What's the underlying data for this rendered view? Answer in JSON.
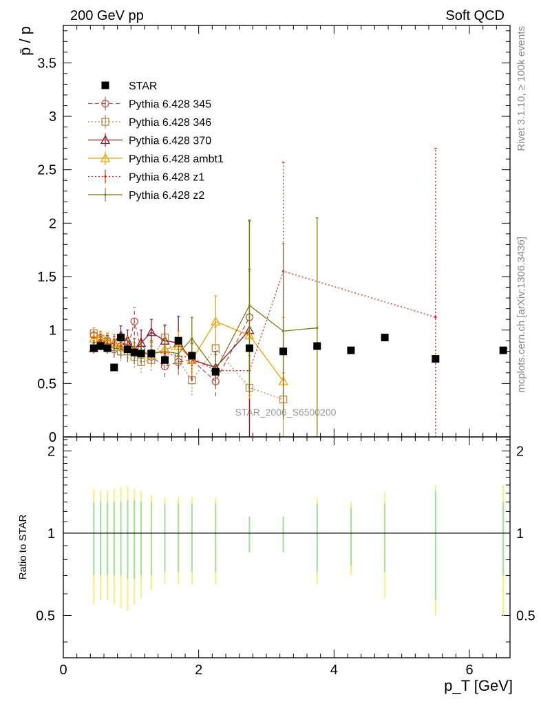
{
  "header": {
    "left": "200 GeV pp",
    "right": "Soft QCD"
  },
  "side_labels": {
    "rivet": "Rivet 3.1.10, ≥ 100k events",
    "mcplots": "mcplots.cern.ch [arXiv:1306.3436]"
  },
  "watermark": "STAR_2006_S6500200",
  "chart_data": [
    {
      "type": "scatter",
      "panel": "main",
      "ylabel": "p̄ / p",
      "xlim": [
        0,
        6.6
      ],
      "ylim": [
        0,
        3.85
      ],
      "yticks": [
        0,
        0.5,
        1,
        1.5,
        2,
        2.5,
        3,
        3.5
      ],
      "ytick_labels": [
        "0",
        "0.5",
        "1",
        "1.5",
        "2",
        "2.5",
        "3",
        "3.5"
      ],
      "legend_position": "top-left",
      "series": [
        {
          "name": "STAR",
          "color": "#000000",
          "style": "markers",
          "marker": "filled-square",
          "x": [
            0.45,
            0.55,
            0.65,
            0.75,
            0.85,
            0.95,
            1.05,
            1.15,
            1.3,
            1.5,
            1.7,
            1.9,
            2.25,
            2.75,
            3.25,
            3.75,
            4.25,
            4.75,
            5.5,
            6.5
          ],
          "y": [
            0.83,
            0.85,
            0.83,
            0.65,
            0.93,
            0.82,
            0.79,
            0.78,
            0.78,
            0.72,
            0.9,
            0.76,
            0.61,
            0.83,
            0.8,
            0.85,
            0.81,
            0.93,
            0.73,
            0.81
          ]
        },
        {
          "name": "Pythia 6.428 345",
          "color": "#c0504d",
          "style": "dashed",
          "marker": "open-circle",
          "x": [
            0.45,
            0.55,
            0.65,
            0.75,
            0.85,
            0.95,
            1.05,
            1.15,
            1.3,
            1.5,
            1.7,
            1.9,
            2.25,
            2.75
          ],
          "y": [
            0.95,
            0.88,
            0.9,
            0.82,
            0.85,
            0.82,
            1.08,
            0.82,
            0.75,
            0.66,
            0.7,
            0.72,
            0.52,
            1.12
          ],
          "err": [
            0.05,
            0.06,
            0.07,
            0.08,
            0.09,
            0.1,
            0.13,
            0.1,
            0.1,
            0.1,
            0.12,
            0.15,
            0.14,
            0.45
          ]
        },
        {
          "name": "Pythia 6.428 346",
          "color": "#b5874a",
          "style": "dotted",
          "marker": "open-square",
          "x": [
            0.45,
            0.55,
            0.65,
            0.75,
            0.85,
            0.95,
            1.05,
            1.15,
            1.3,
            1.5,
            1.7,
            1.9,
            2.25,
            2.75,
            3.25
          ],
          "y": [
            0.97,
            0.92,
            0.87,
            0.84,
            0.8,
            0.8,
            0.75,
            0.7,
            0.72,
            0.93,
            0.72,
            0.53,
            0.83,
            0.46,
            0.35
          ],
          "err": [
            0.05,
            0.06,
            0.07,
            0.08,
            0.09,
            0.1,
            0.1,
            0.1,
            0.1,
            0.12,
            0.13,
            0.14,
            0.2,
            0.3,
            0.25
          ]
        },
        {
          "name": "Pythia 6.428 370",
          "color": "#8b1a2b",
          "style": "solid",
          "marker": "open-triangle",
          "x": [
            0.45,
            0.55,
            0.65,
            0.75,
            0.85,
            0.95,
            1.05,
            1.15,
            1.3,
            1.5,
            1.7,
            1.9,
            2.25,
            2.75
          ],
          "y": [
            0.83,
            0.87,
            0.85,
            0.88,
            0.95,
            0.9,
            0.82,
            0.88,
            0.98,
            0.9,
            0.88,
            0.72,
            0.65,
            1.0
          ],
          "err": [
            0.05,
            0.06,
            0.07,
            0.08,
            0.09,
            0.1,
            0.1,
            0.12,
            0.12,
            0.14,
            0.25,
            0.2,
            0.15,
            1.02
          ]
        },
        {
          "name": "Pythia 6.428 ambt1",
          "color": "#f0a000",
          "style": "solid",
          "marker": "open-triangle",
          "x": [
            0.45,
            0.55,
            0.65,
            0.75,
            0.85,
            0.95,
            1.05,
            1.15,
            1.3,
            1.5,
            1.7,
            1.9,
            2.25,
            2.75,
            3.25
          ],
          "y": [
            0.92,
            0.93,
            0.9,
            0.88,
            0.84,
            0.84,
            0.82,
            0.78,
            0.77,
            0.82,
            0.85,
            0.72,
            1.08,
            0.95,
            0.52
          ],
          "err": [
            0.05,
            0.06,
            0.07,
            0.08,
            0.09,
            0.1,
            0.1,
            0.1,
            0.12,
            0.12,
            0.14,
            0.15,
            0.24,
            0.6,
            0.6
          ]
        },
        {
          "name": "Pythia 6.428 z1",
          "color": "#e02010",
          "style": "dotted",
          "marker": "dot",
          "x": [
            0.45,
            0.55,
            0.65,
            0.75,
            0.85,
            0.95,
            1.05,
            1.15,
            1.3,
            1.5,
            1.7,
            1.9,
            2.25,
            2.75,
            3.25,
            5.5
          ],
          "y": [
            0.88,
            0.9,
            0.88,
            0.86,
            0.85,
            0.83,
            0.82,
            0.8,
            0.8,
            0.78,
            0.76,
            0.74,
            0.62,
            0.62,
            1.55,
            1.12
          ],
          "err": [
            0.05,
            0.06,
            0.07,
            0.08,
            0.09,
            0.1,
            0.1,
            0.1,
            0.1,
            0.12,
            0.12,
            0.14,
            0.15,
            0.4,
            1.02,
            1.58
          ]
        },
        {
          "name": "Pythia 6.428 z2",
          "color": "#7a7a1a",
          "style": "solid",
          "marker": "dot",
          "x": [
            0.45,
            0.55,
            0.65,
            0.75,
            0.85,
            0.95,
            1.05,
            1.15,
            1.3,
            1.5,
            1.7,
            1.9,
            2.25,
            2.75,
            3.25,
            3.75
          ],
          "y": [
            0.85,
            0.88,
            0.85,
            0.83,
            0.82,
            0.8,
            0.78,
            0.78,
            0.78,
            0.8,
            0.78,
            0.92,
            0.62,
            1.23,
            0.99,
            1.02
          ],
          "err": [
            0.05,
            0.06,
            0.07,
            0.08,
            0.09,
            0.1,
            0.1,
            0.1,
            0.1,
            0.12,
            0.12,
            0.2,
            0.15,
            0.8,
            0.82,
            1.03
          ]
        }
      ]
    },
    {
      "type": "scatter",
      "panel": "ratio",
      "ylabel": "Ratio to STAR",
      "xlabel": "p_T [GeV]",
      "xlim": [
        0,
        6.6
      ],
      "ylim": [
        0.35,
        2.25
      ],
      "yticks": [
        0.5,
        1,
        2
      ],
      "ytick_labels": [
        "0.5",
        "1",
        "2"
      ],
      "xticks": [
        0,
        2,
        4,
        6
      ],
      "xtick_labels": [
        "0",
        "2",
        "4",
        "6"
      ],
      "reference_line": 1,
      "uncertainty_bands": {
        "x": [
          0.45,
          0.55,
          0.65,
          0.75,
          0.85,
          0.95,
          1.05,
          1.15,
          1.3,
          1.5,
          1.7,
          1.9,
          2.25,
          2.75,
          3.25,
          3.75,
          4.25,
          4.75,
          5.5,
          6.5
        ],
        "stat": [
          0.3,
          0.3,
          0.3,
          0.3,
          0.3,
          0.32,
          0.32,
          0.3,
          0.3,
          0.28,
          0.28,
          0.28,
          0.28,
          0.15,
          0.15,
          0.28,
          0.24,
          0.28,
          0.43,
          0.3
        ],
        "total": [
          0.45,
          0.43,
          0.43,
          0.45,
          0.47,
          0.48,
          0.45,
          0.42,
          0.38,
          0.35,
          0.35,
          0.35,
          0.35,
          0.15,
          0.15,
          0.35,
          0.3,
          0.42,
          0.5,
          0.5
        ]
      }
    }
  ]
}
